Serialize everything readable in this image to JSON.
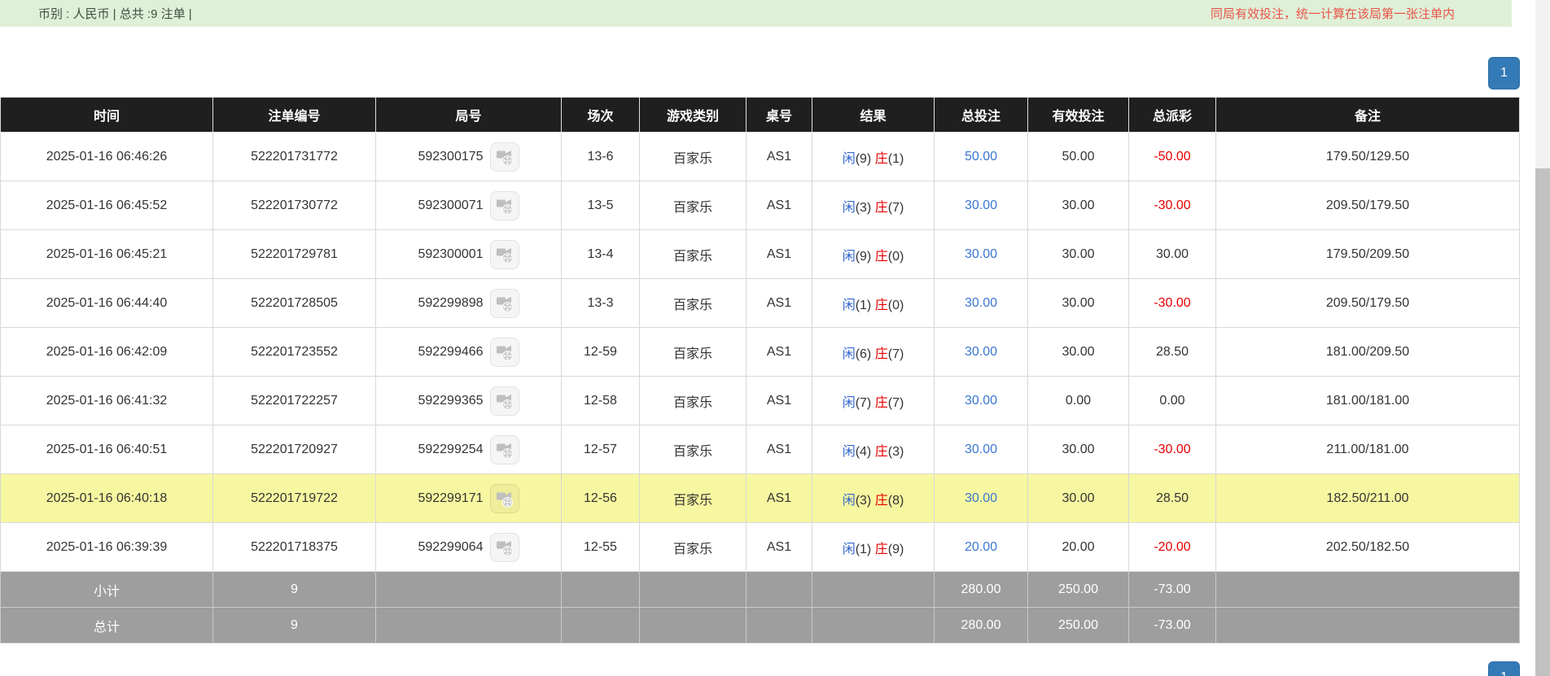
{
  "top_bar": {
    "summary": "币别 : 人民币 | 总共 :9 注单 |",
    "notice": "同局有效投注，统一计算在该局第一张注单内"
  },
  "pagination": {
    "page": "1"
  },
  "icons": {
    "round_preview": "video-film-icon"
  },
  "colors": {
    "topbar_bg": "#dff0d8",
    "notice_red": "#ea5348",
    "header_bg": "#1f1f1f",
    "bet_blue": "#3a77d2",
    "player_blue": "#3366cc",
    "banker_red": "#e60000",
    "neg_red": "#e60000",
    "highlight_yellow": "#f7f7a1",
    "summary_bg": "#9e9e9e",
    "page_blue": "#337ab7"
  },
  "table": {
    "columns": [
      "时间",
      "注单编号",
      "局号",
      "场次",
      "游戏类别",
      "桌号",
      "结果",
      "总投注",
      "有效投注",
      "总派彩",
      "备注"
    ],
    "rows": [
      {
        "time": "2025-01-16 06:46:26",
        "bet_id": "522201731772",
        "round_no": "592300175",
        "session": "13-6",
        "game_type": "百家乐",
        "table_no": "AS1",
        "result_player_label": "闲",
        "result_player_value": "(9)",
        "result_banker_label": "庄",
        "result_banker_value": "(1)",
        "total_bet": "50.00",
        "valid_bet": "50.00",
        "payout": "-50.00",
        "remark": "179.50/129.50",
        "highlighted": false
      },
      {
        "time": "2025-01-16 06:45:52",
        "bet_id": "522201730772",
        "round_no": "592300071",
        "session": "13-5",
        "game_type": "百家乐",
        "table_no": "AS1",
        "result_player_label": "闲",
        "result_player_value": "(3)",
        "result_banker_label": "庄",
        "result_banker_value": "(7)",
        "total_bet": "30.00",
        "valid_bet": "30.00",
        "payout": "-30.00",
        "remark": "209.50/179.50",
        "highlighted": false
      },
      {
        "time": "2025-01-16 06:45:21",
        "bet_id": "522201729781",
        "round_no": "592300001",
        "session": "13-4",
        "game_type": "百家乐",
        "table_no": "AS1",
        "result_player_label": "闲",
        "result_player_value": "(9)",
        "result_banker_label": "庄",
        "result_banker_value": "(0)",
        "total_bet": "30.00",
        "valid_bet": "30.00",
        "payout": "30.00",
        "remark": "179.50/209.50",
        "highlighted": false
      },
      {
        "time": "2025-01-16 06:44:40",
        "bet_id": "522201728505",
        "round_no": "592299898",
        "session": "13-3",
        "game_type": "百家乐",
        "table_no": "AS1",
        "result_player_label": "闲",
        "result_player_value": "(1)",
        "result_banker_label": "庄",
        "result_banker_value": "(0)",
        "total_bet": "30.00",
        "valid_bet": "30.00",
        "payout": "-30.00",
        "remark": "209.50/179.50",
        "highlighted": false
      },
      {
        "time": "2025-01-16 06:42:09",
        "bet_id": "522201723552",
        "round_no": "592299466",
        "session": "12-59",
        "game_type": "百家乐",
        "table_no": "AS1",
        "result_player_label": "闲",
        "result_player_value": "(6)",
        "result_banker_label": "庄",
        "result_banker_value": "(7)",
        "total_bet": "30.00",
        "valid_bet": "30.00",
        "payout": "28.50",
        "remark": "181.00/209.50",
        "highlighted": false
      },
      {
        "time": "2025-01-16 06:41:32",
        "bet_id": "522201722257",
        "round_no": "592299365",
        "session": "12-58",
        "game_type": "百家乐",
        "table_no": "AS1",
        "result_player_label": "闲",
        "result_player_value": "(7)",
        "result_banker_label": "庄",
        "result_banker_value": "(7)",
        "total_bet": "30.00",
        "valid_bet": "0.00",
        "payout": "0.00",
        "remark": "181.00/181.00",
        "highlighted": false
      },
      {
        "time": "2025-01-16 06:40:51",
        "bet_id": "522201720927",
        "round_no": "592299254",
        "session": "12-57",
        "game_type": "百家乐",
        "table_no": "AS1",
        "result_player_label": "闲",
        "result_player_value": "(4)",
        "result_banker_label": "庄",
        "result_banker_value": "(3)",
        "total_bet": "30.00",
        "valid_bet": "30.00",
        "payout": "-30.00",
        "remark": "211.00/181.00",
        "highlighted": false
      },
      {
        "time": "2025-01-16 06:40:18",
        "bet_id": "522201719722",
        "round_no": "592299171",
        "session": "12-56",
        "game_type": "百家乐",
        "table_no": "AS1",
        "result_player_label": "闲",
        "result_player_value": "(3)",
        "result_banker_label": "庄",
        "result_banker_value": "(8)",
        "total_bet": "30.00",
        "valid_bet": "30.00",
        "payout": "28.50",
        "remark": "182.50/211.00",
        "highlighted": true
      },
      {
        "time": "2025-01-16 06:39:39",
        "bet_id": "522201718375",
        "round_no": "592299064",
        "session": "12-55",
        "game_type": "百家乐",
        "table_no": "AS1",
        "result_player_label": "闲",
        "result_player_value": "(1)",
        "result_banker_label": "庄",
        "result_banker_value": "(9)",
        "total_bet": "20.00",
        "valid_bet": "20.00",
        "payout": "-20.00",
        "remark": "202.50/182.50",
        "highlighted": false
      }
    ],
    "subtotal": {
      "label": "小计",
      "count": "9",
      "total_bet": "280.00",
      "valid_bet": "250.00",
      "payout": "-73.00"
    },
    "total": {
      "label": "总计",
      "count": "9",
      "total_bet": "280.00",
      "valid_bet": "250.00",
      "payout": "-73.00"
    }
  }
}
